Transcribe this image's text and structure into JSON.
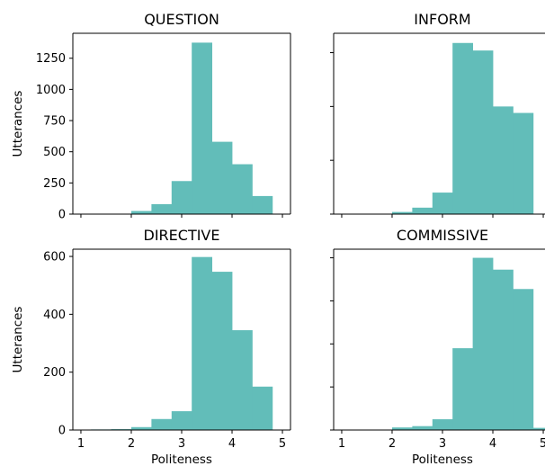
{
  "chart_data": [
    {
      "type": "bar",
      "title": "QUESTION",
      "xlabel": "",
      "ylabel": "Utterances",
      "bins": [
        1.2,
        1.6,
        2.0,
        2.4,
        2.8,
        3.2,
        3.6,
        4.0,
        4.4,
        4.8
      ],
      "values": [
        1,
        3,
        25,
        80,
        265,
        1375,
        580,
        400,
        145,
        0
      ],
      "ylim": [
        0,
        1450
      ],
      "xlim": [
        1,
        5
      ],
      "xticks": [
        1,
        2,
        3,
        4,
        5
      ],
      "xtick_labels": [],
      "yticks": [
        0,
        250,
        500,
        750,
        1000,
        1250
      ],
      "ytick_labels": [
        "0",
        "250",
        "500",
        "750",
        "1000",
        "1250"
      ],
      "color": "#62bdb9"
    },
    {
      "type": "bar",
      "title": "INFORM",
      "xlabel": "",
      "ylabel": "",
      "bins": [
        1.2,
        1.6,
        2.0,
        2.4,
        2.8,
        3.2,
        3.6,
        4.0,
        4.4,
        4.8
      ],
      "values": [
        1,
        3,
        20,
        60,
        200,
        1590,
        1520,
        1000,
        940,
        0
      ],
      "ylim": [
        0,
        1680
      ],
      "xlim": [
        1,
        5
      ],
      "xticks": [
        1,
        2,
        3,
        4,
        5
      ],
      "xtick_labels": [],
      "yticks": [
        0,
        500,
        1000,
        1500
      ],
      "ytick_labels": [],
      "color": "#62bdb9"
    },
    {
      "type": "bar",
      "title": "DIRECTIVE",
      "xlabel": "Politeness",
      "ylabel": "Utterances",
      "bins": [
        1.2,
        1.6,
        2.0,
        2.4,
        2.8,
        3.2,
        3.6,
        4.0,
        4.4,
        4.8
      ],
      "values": [
        2,
        3,
        10,
        38,
        65,
        598,
        547,
        345,
        150,
        0
      ],
      "ylim": [
        0,
        625
      ],
      "xlim": [
        1,
        5
      ],
      "xticks": [
        1,
        2,
        3,
        4,
        5
      ],
      "xtick_labels": [
        "1",
        "2",
        "3",
        "4",
        "5"
      ],
      "yticks": [
        0,
        200,
        400,
        600
      ],
      "ytick_labels": [
        "0",
        "200",
        "400",
        "600"
      ],
      "color": "#62bdb9"
    },
    {
      "type": "bar",
      "title": "COMMISSIVE",
      "xlabel": "Politeness",
      "ylabel": "",
      "bins": [
        1.2,
        1.6,
        2.0,
        2.4,
        2.8,
        3.2,
        3.6,
        4.0,
        4.4,
        4.8
      ],
      "values": [
        1,
        2,
        12,
        18,
        50,
        380,
        800,
        745,
        655,
        10
      ],
      "ylim": [
        0,
        840
      ],
      "xlim": [
        1,
        5
      ],
      "xticks": [
        1,
        2,
        3,
        4,
        5
      ],
      "xtick_labels": [
        "1",
        "2",
        "3",
        "4",
        "5"
      ],
      "yticks": [
        0,
        200,
        400,
        600,
        800
      ],
      "ytick_labels": [],
      "color": "#62bdb9"
    }
  ]
}
